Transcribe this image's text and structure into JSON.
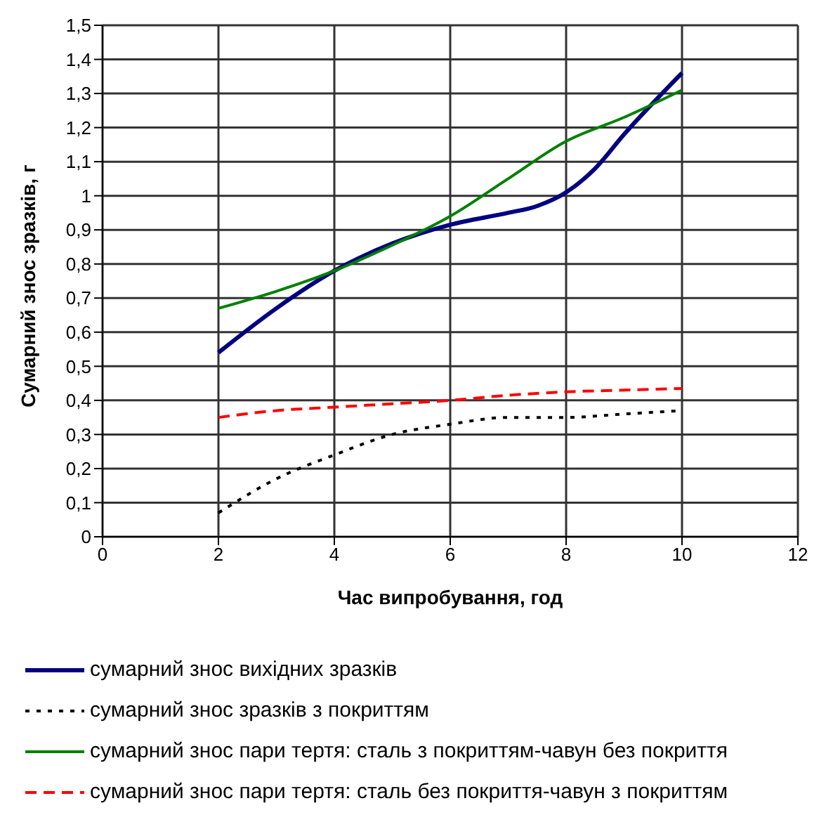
{
  "chart_data": {
    "type": "line",
    "xlabel": "Час випробування, год",
    "ylabel": "Сумарний знос зразків, г",
    "xlim": [
      0,
      12
    ],
    "xticks": [
      0,
      2,
      4,
      6,
      8,
      10,
      12
    ],
    "ylim": [
      0,
      1.5
    ],
    "yticks": [
      0,
      {
        "value": 0.1,
        "label": "0,1"
      },
      {
        "value": 0.2,
        "label": "0,2"
      },
      {
        "value": 0.3,
        "label": "0,3"
      },
      {
        "value": 0.4,
        "label": "0,4"
      },
      {
        "value": 0.5,
        "label": "0,5"
      },
      {
        "value": 0.6,
        "label": "0,6"
      },
      {
        "value": 0.7,
        "label": "0,7"
      },
      {
        "value": 0.8,
        "label": "0,8"
      },
      {
        "value": 0.9,
        "label": "0,9"
      },
      1,
      {
        "value": 1.1,
        "label": "1,1"
      },
      {
        "value": 1.2,
        "label": "1,2"
      },
      {
        "value": 1.3,
        "label": "1,3"
      },
      {
        "value": 1.4,
        "label": "1,4"
      },
      {
        "value": 1.5,
        "label": "1,5"
      }
    ],
    "grid": true,
    "legend": "bottom",
    "marker": "none",
    "series": [
      {
        "name": "сумарний знос вихідних зразків",
        "color": "#000080",
        "line_style": "solid",
        "x": [
          2,
          3,
          4,
          5,
          6,
          7,
          7.5,
          8,
          8.5,
          9,
          10
        ],
        "values": [
          0.54,
          0.67,
          0.78,
          0.86,
          0.915,
          0.95,
          0.97,
          1.01,
          1.08,
          1.18,
          1.36
        ]
      },
      {
        "name": "сумарний знос зразків з покриттям",
        "color": "#000000",
        "line_style": "dotted",
        "x": [
          2,
          3,
          4,
          5,
          6,
          7,
          8,
          9,
          10
        ],
        "values": [
          0.07,
          0.17,
          0.24,
          0.3,
          0.33,
          0.35,
          0.35,
          0.36,
          0.37
        ]
      },
      {
        "name": "сумарний знос пари тертя: сталь з покриттям-чавун без покриття",
        "color": "#008000",
        "line_style": "solid",
        "x": [
          2,
          3,
          4,
          5,
          6,
          7,
          8,
          9,
          10
        ],
        "values": [
          0.67,
          0.72,
          0.78,
          0.855,
          0.94,
          1.05,
          1.16,
          1.23,
          1.31
        ]
      },
      {
        "name": "сумарний знос пари тертя: сталь без покриття-чавун з покриттям",
        "color": "#ff0000",
        "line_style": "dashed",
        "x": [
          2,
          3,
          4,
          5,
          6,
          7,
          8,
          9,
          10
        ],
        "values": [
          0.35,
          0.37,
          0.38,
          0.39,
          0.4,
          0.415,
          0.425,
          0.43,
          0.435
        ]
      }
    ]
  }
}
